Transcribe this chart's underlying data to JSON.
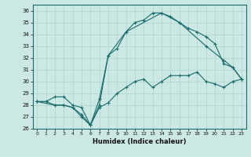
{
  "xlabel": "Humidex (Indice chaleur)",
  "xlim": [
    -0.5,
    23.5
  ],
  "ylim": [
    26,
    36.5
  ],
  "xticks": [
    0,
    1,
    2,
    3,
    4,
    5,
    6,
    7,
    8,
    9,
    10,
    11,
    12,
    13,
    14,
    15,
    16,
    17,
    18,
    19,
    20,
    21,
    22,
    23
  ],
  "yticks": [
    26,
    27,
    28,
    29,
    30,
    31,
    32,
    33,
    34,
    35,
    36
  ],
  "bg_color": "#cbe8e4",
  "line_color": "#1a6b6b",
  "grid_color": "#aad4cc",
  "line1_x": [
    0,
    1,
    2,
    3,
    4,
    5,
    6,
    7,
    8,
    9,
    10,
    11,
    12,
    13,
    14,
    15,
    16,
    17,
    18,
    19,
    20,
    21,
    22,
    23
  ],
  "line1_y": [
    28.3,
    28.3,
    28.7,
    28.7,
    28.0,
    27.8,
    26.3,
    27.8,
    28.2,
    29.0,
    29.5,
    30.0,
    30.2,
    29.5,
    30.0,
    30.5,
    30.5,
    30.5,
    30.8,
    30.0,
    29.8,
    29.5,
    30.0,
    30.2
  ],
  "line2_x": [
    0,
    1,
    2,
    3,
    4,
    5,
    6,
    7,
    8,
    9,
    10,
    11,
    12,
    13,
    14,
    15,
    16,
    17,
    18,
    19,
    20,
    21,
    22,
    23
  ],
  "line2_y": [
    28.3,
    28.3,
    28.0,
    28.0,
    27.8,
    27.2,
    26.3,
    28.0,
    32.2,
    32.8,
    34.2,
    35.0,
    35.2,
    35.8,
    35.8,
    35.5,
    35.0,
    34.5,
    34.2,
    33.8,
    33.2,
    31.5,
    31.2,
    30.2
  ],
  "line3_x": [
    0,
    2,
    3,
    4,
    5,
    6,
    7,
    8,
    10,
    14,
    16,
    19,
    21,
    22,
    23
  ],
  "line3_y": [
    28.3,
    28.0,
    28.0,
    27.8,
    27.0,
    26.3,
    28.5,
    32.2,
    34.2,
    35.8,
    35.0,
    33.0,
    31.8,
    31.2,
    30.2
  ]
}
